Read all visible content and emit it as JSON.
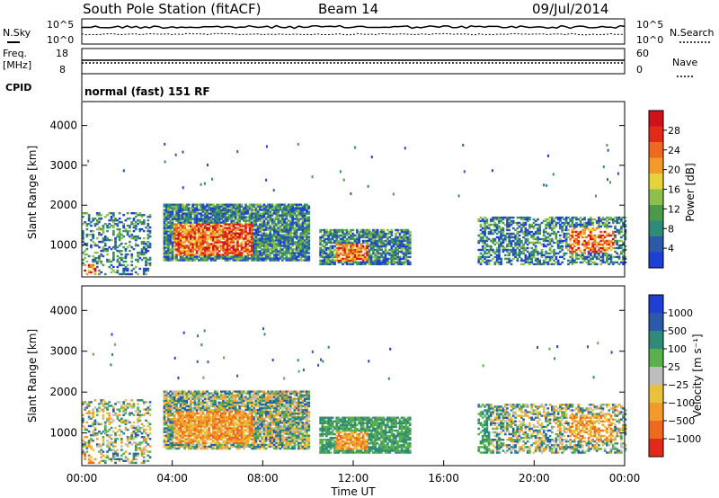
{
  "header": {
    "title": "South Pole Station (fitACF)",
    "beam": "Beam 14",
    "date": "09/Jul/2014"
  },
  "strips": {
    "nsky_label": "N.Sky",
    "nsky_ticks": [
      "10^5",
      "10^0"
    ],
    "nsearch_label": "N.Search",
    "nsearch_ticks": [
      "10^5",
      "10^0"
    ],
    "freq_label": "Freq.",
    "freq_unit": "[MHz]",
    "freq_ticks": [
      "18",
      "8"
    ],
    "nave_label": "Nave",
    "nave_ticks": [
      "60",
      "0"
    ],
    "cpid_label": "CPID",
    "cpid_value": "normal (fast) 151 RF"
  },
  "colors": {
    "power_scale": [
      "#1e3fd6",
      "#2a5aa8",
      "#2f8a7a",
      "#4a9a4a",
      "#8cc04a",
      "#e8d23a",
      "#f39a2a",
      "#ee6a1e",
      "#e32a1a",
      "#d0101a"
    ],
    "velocity_scale": [
      "#1e3fd6",
      "#2a5aa8",
      "#2f8a7a",
      "#5ab04a",
      "#bdbdbd",
      "#e8c23a",
      "#f39a2a",
      "#ee6a1e",
      "#e32a1a"
    ]
  },
  "chart_data": [
    {
      "type": "heatmap",
      "ylabel": "Slant Range [km]",
      "ylim": [
        200,
        4600
      ],
      "yticks": [
        "1000",
        "2000",
        "3000",
        "4000"
      ],
      "xlim": [
        0,
        24
      ],
      "colorbar_label": "Power [dB]",
      "colorbar_ticks": [
        "4",
        "8",
        "12",
        "16",
        "20",
        "24",
        "28"
      ],
      "features": [
        {
          "t_start": 3.6,
          "t_end": 10.0,
          "r_start": 600,
          "r_end": 2000,
          "level": "high"
        },
        {
          "t_start": 10.5,
          "t_end": 14.5,
          "r_start": 500,
          "r_end": 1400,
          "level": "high"
        },
        {
          "t_start": 17.5,
          "t_end": 24.0,
          "r_start": 500,
          "r_end": 1700,
          "level": "medium"
        }
      ]
    },
    {
      "type": "heatmap",
      "ylabel": "Slant Range [km]",
      "ylim": [
        200,
        4600
      ],
      "yticks": [
        "1000",
        "2000",
        "3000",
        "4000"
      ],
      "xlim": [
        0,
        24
      ],
      "xticks": [
        "00:00",
        "04:00",
        "08:00",
        "12:00",
        "16:00",
        "20:00",
        "00:00"
      ],
      "xlabel": "Time UT",
      "colorbar_label": "Velocity [m s⁻¹]",
      "colorbar_ticks": [
        "1000",
        "500",
        "100",
        "25",
        "−25",
        "−100",
        "−500",
        "−1000"
      ]
    }
  ]
}
